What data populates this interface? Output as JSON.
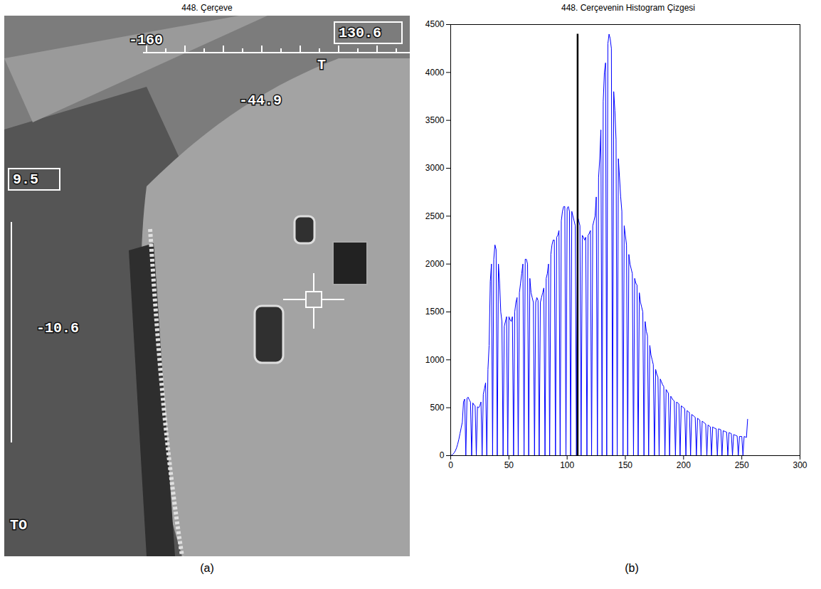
{
  "chart_data": [
    {
      "type": "image",
      "title": "448. Çerçeve",
      "caption": "(a)",
      "annotations": [
        "-160",
        "130.6",
        "T",
        "-44.9",
        "9.5",
        "-10.6",
        "TO"
      ]
    },
    {
      "type": "line",
      "title": "448. Cerçevenin Histogram Çizgesi",
      "caption": "(b)",
      "color": "#0000ff",
      "grid": false,
      "xlim": [
        0,
        300
      ],
      "xticks": [
        0,
        50,
        100,
        150,
        200,
        250,
        300
      ],
      "ylim": [
        0,
        4500
      ],
      "yticks": [
        0,
        500,
        1000,
        1500,
        2000,
        2500,
        3000,
        3500,
        4000,
        4500
      ],
      "threshold": {
        "x": 109,
        "top": 4400,
        "color": "#000000"
      },
      "x": [
        0,
        1,
        2,
        3,
        4,
        5,
        6,
        7,
        8,
        9,
        10,
        11,
        12,
        13,
        14,
        15,
        16,
        17,
        18,
        19,
        20,
        21,
        22,
        23,
        24,
        25,
        26,
        27,
        28,
        29,
        30,
        31,
        32,
        33,
        34,
        35,
        36,
        37,
        38,
        39,
        40,
        41,
        42,
        43,
        44,
        45,
        46,
        47,
        48,
        49,
        50,
        51,
        52,
        53,
        54,
        55,
        56,
        57,
        58,
        59,
        60,
        61,
        62,
        63,
        64,
        65,
        66,
        67,
        68,
        69,
        70,
        71,
        72,
        73,
        74,
        75,
        76,
        77,
        78,
        79,
        80,
        81,
        82,
        83,
        84,
        85,
        86,
        87,
        88,
        89,
        90,
        91,
        92,
        93,
        94,
        95,
        96,
        97,
        98,
        99,
        100,
        101,
        102,
        103,
        104,
        105,
        106,
        107,
        108,
        109,
        110,
        111,
        112,
        113,
        114,
        115,
        116,
        117,
        118,
        119,
        120,
        121,
        122,
        123,
        124,
        125,
        126,
        127,
        128,
        129,
        130,
        131,
        132,
        133,
        134,
        135,
        136,
        137,
        138,
        139,
        140,
        141,
        142,
        143,
        144,
        145,
        146,
        147,
        148,
        149,
        150,
        151,
        152,
        153,
        154,
        155,
        156,
        157,
        158,
        159,
        160,
        161,
        162,
        163,
        164,
        165,
        166,
        167,
        168,
        169,
        170,
        171,
        172,
        173,
        174,
        175,
        176,
        177,
        178,
        179,
        180,
        181,
        182,
        183,
        184,
        185,
        186,
        187,
        188,
        189,
        190,
        191,
        192,
        193,
        194,
        195,
        196,
        197,
        198,
        199,
        200,
        201,
        202,
        203,
        204,
        205,
        206,
        207,
        208,
        209,
        210,
        211,
        212,
        213,
        214,
        215,
        216,
        217,
        218,
        219,
        220,
        221,
        222,
        223,
        224,
        225,
        226,
        227,
        228,
        229,
        230,
        231,
        232,
        233,
        234,
        235,
        236,
        237,
        238,
        239,
        240,
        241,
        242,
        243,
        244,
        245,
        246,
        247,
        248,
        249,
        250,
        251,
        252,
        253,
        254,
        255
      ],
      "values": [
        0,
        5,
        15,
        30,
        50,
        80,
        120,
        170,
        230,
        290,
        350,
        560,
        590,
        0,
        600,
        610,
        580,
        560,
        0,
        550,
        530,
        520,
        0,
        510,
        500,
        520,
        560,
        0,
        640,
        700,
        760,
        0,
        900,
        1150,
        1820,
        2000,
        0,
        2050,
        2200,
        2150,
        0,
        2000,
        1800,
        1500,
        1400,
        0,
        1350,
        1400,
        1450,
        0,
        1450,
        1420,
        1400,
        1450,
        0,
        1500,
        1600,
        1650,
        0,
        1700,
        1800,
        1900,
        2000,
        0,
        2050,
        2050,
        2000,
        0,
        1850,
        1700,
        1650,
        1600,
        0,
        1600,
        1650,
        1620,
        0,
        1600,
        1650,
        1700,
        1750,
        0,
        1850,
        1900,
        2000,
        0,
        2100,
        2200,
        2250,
        2250,
        0,
        2280,
        2300,
        2350,
        0,
        2450,
        2550,
        2600,
        2600,
        0,
        2580,
        2600,
        2550,
        0,
        2550,
        2500,
        2450,
        2400,
        0,
        2500,
        2450,
        2400,
        0,
        2300,
        2280,
        2250,
        2280,
        0,
        2300,
        2320,
        2350,
        0,
        2400,
        2450,
        2500,
        2700,
        0,
        2900,
        3100,
        3400,
        0,
        3700,
        4000,
        4100,
        0,
        4300,
        4400,
        4350,
        4250,
        0,
        3800,
        3600,
        3300,
        0,
        3100,
        2900,
        2700,
        2550,
        0,
        2400,
        2300,
        2200,
        0,
        2100,
        2000,
        1950,
        1900,
        0,
        1850,
        1800,
        1780,
        0,
        1700,
        1600,
        1550,
        1500,
        0,
        1400,
        1300,
        1250,
        0,
        1150,
        1050,
        1000,
        950,
        0,
        900,
        850,
        820,
        0,
        800,
        770,
        740,
        720,
        0,
        690,
        670,
        650,
        0,
        620,
        600,
        580,
        570,
        0,
        560,
        550,
        540,
        0,
        520,
        510,
        500,
        490,
        0,
        470,
        460,
        450,
        0,
        430,
        420,
        410,
        400,
        0,
        390,
        380,
        370,
        0,
        360,
        350,
        340,
        330,
        0,
        320,
        310,
        300,
        0,
        300,
        290,
        285,
        280,
        0,
        280,
        275,
        270,
        0,
        260,
        255,
        250,
        245,
        0,
        240,
        235,
        230,
        0,
        220,
        215,
        210,
        205,
        0,
        200,
        200,
        200,
        0,
        200,
        195,
        190,
        380
      ]
    }
  ]
}
